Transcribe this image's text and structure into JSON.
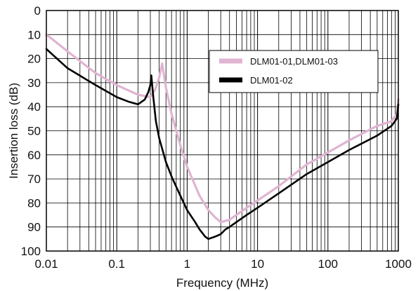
{
  "chart_data": {
    "type": "line",
    "title": "",
    "xlabel": "Frequency (MHz)",
    "ylabel": "Insertion loss (dB)",
    "x_scale": "log",
    "xlim": [
      0.01,
      1000
    ],
    "ylim": [
      0,
      100
    ],
    "y_inverted": true,
    "grid": true,
    "legend_position": "upper-right",
    "x_ticks": [
      {
        "value": 0.01,
        "label": "0.01"
      },
      {
        "value": 0.1,
        "label": "0.1"
      },
      {
        "value": 1,
        "label": "1"
      },
      {
        "value": 10,
        "label": "10"
      },
      {
        "value": 100,
        "label": "100"
      },
      {
        "value": 1000,
        "label": "1000"
      }
    ],
    "y_ticks": [
      {
        "value": 0,
        "label": "0"
      },
      {
        "value": 10,
        "label": "10"
      },
      {
        "value": 20,
        "label": "20"
      },
      {
        "value": 30,
        "label": "30"
      },
      {
        "value": 40,
        "label": "40"
      },
      {
        "value": 50,
        "label": "50"
      },
      {
        "value": 60,
        "label": "60"
      },
      {
        "value": 70,
        "label": "70"
      },
      {
        "value": 80,
        "label": "80"
      },
      {
        "value": 90,
        "label": "90"
      },
      {
        "value": 100,
        "label": "100"
      }
    ],
    "series": [
      {
        "name": "DLM01-01,DLM01-03",
        "color": "#e0b4d2",
        "x": [
          0.01,
          0.02,
          0.05,
          0.1,
          0.2,
          0.3,
          0.35,
          0.4,
          0.44,
          0.5,
          0.6,
          0.8,
          1.0,
          1.5,
          2.0,
          2.5,
          3.0,
          4.0,
          5.0,
          7.0,
          10,
          20,
          50,
          100,
          200,
          500,
          800,
          950,
          1000
        ],
        "y": [
          10,
          17,
          26,
          31,
          35,
          36,
          33,
          28,
          22,
          32,
          43,
          56,
          65,
          77,
          83,
          86,
          88,
          87,
          85,
          82,
          79,
          73,
          64,
          59,
          54,
          48,
          46,
          43,
          37
        ]
      },
      {
        "name": "DLM01-02",
        "color": "#000000",
        "x": [
          0.01,
          0.02,
          0.05,
          0.1,
          0.15,
          0.2,
          0.25,
          0.28,
          0.3,
          0.31,
          0.33,
          0.36,
          0.4,
          0.5,
          0.6,
          0.8,
          1.0,
          1.3,
          1.5,
          1.8,
          2.0,
          2.5,
          3.0,
          3.5,
          4.0,
          5.0,
          7.0,
          10,
          20,
          50,
          100,
          200,
          500,
          800,
          950,
          1000
        ],
        "y": [
          16,
          24,
          31,
          36,
          38,
          39,
          37,
          34,
          31,
          27,
          36,
          46,
          53,
          63,
          69,
          77,
          83,
          88,
          91,
          94,
          95,
          94,
          93,
          91,
          90,
          88,
          85,
          82,
          76,
          68,
          63,
          58,
          52,
          48,
          45,
          39
        ]
      }
    ]
  }
}
